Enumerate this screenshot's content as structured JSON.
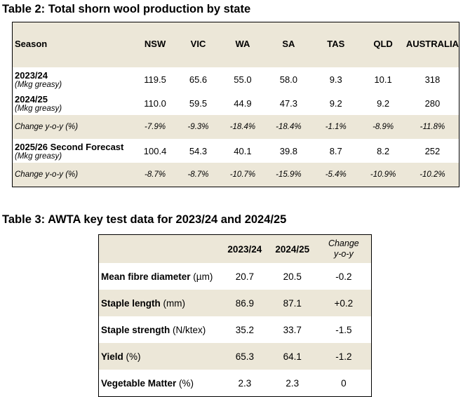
{
  "table2": {
    "title": "Table 2: Total shorn wool production by state",
    "headers": [
      "Season",
      "NSW",
      "VIC",
      "WA",
      "SA",
      "TAS",
      "QLD",
      "AUSTRALIA"
    ],
    "rows": [
      {
        "label": "2023/24",
        "sublabel": "(Mkg greasy)",
        "values": [
          "119.5",
          "65.6",
          "55.0",
          "58.0",
          "9.3",
          "10.1",
          "318"
        ]
      },
      {
        "label": "2024/25",
        "sublabel": "(Mkg greasy)",
        "values": [
          "110.0",
          "59.5",
          "44.9",
          "47.3",
          "9.2",
          "9.2",
          "280"
        ]
      },
      {
        "label": "Change y-o-y (%)",
        "values": [
          "-7.9%",
          "-9.3%",
          "-18.4%",
          "-18.4%",
          "-1.1%",
          "-8.9%",
          "-11.8%"
        ]
      },
      {
        "label": "2025/26 Second Forecast",
        "sublabel": "(Mkg greasy)",
        "values": [
          "100.4",
          "54.3",
          "40.1",
          "39.8",
          "8.7",
          "8.2",
          "252"
        ]
      },
      {
        "label": "Change y-o-y (%)",
        "values": [
          "-8.7%",
          "-8.7%",
          "-10.7%",
          "-15.9%",
          "-5.4%",
          "-10.9%",
          "-10.2%"
        ]
      }
    ]
  },
  "table3": {
    "title": "Table 3: AWTA key test data for 2023/24 and 2024/25",
    "headers": [
      "",
      "2023/24",
      "2024/25"
    ],
    "change_header": [
      "Change",
      "y-o-y"
    ],
    "rows": [
      {
        "label": "Mean fibre diameter",
        "unit": " (µm)",
        "values": [
          "20.7",
          "20.5",
          "-0.2"
        ]
      },
      {
        "label": "Staple length",
        "unit": " (mm)",
        "values": [
          "86.9",
          "87.1",
          "+0.2"
        ]
      },
      {
        "label": "Staple strength",
        "unit": " (N/ktex)",
        "values": [
          "35.2",
          "33.7",
          "-1.5"
        ]
      },
      {
        "label": "Yield",
        "unit": " (%)",
        "values": [
          "65.3",
          "64.1",
          "-1.2"
        ]
      },
      {
        "label": "Vegetable Matter",
        "unit": " (%)",
        "values": [
          "2.3",
          "2.3",
          "0"
        ]
      }
    ]
  }
}
